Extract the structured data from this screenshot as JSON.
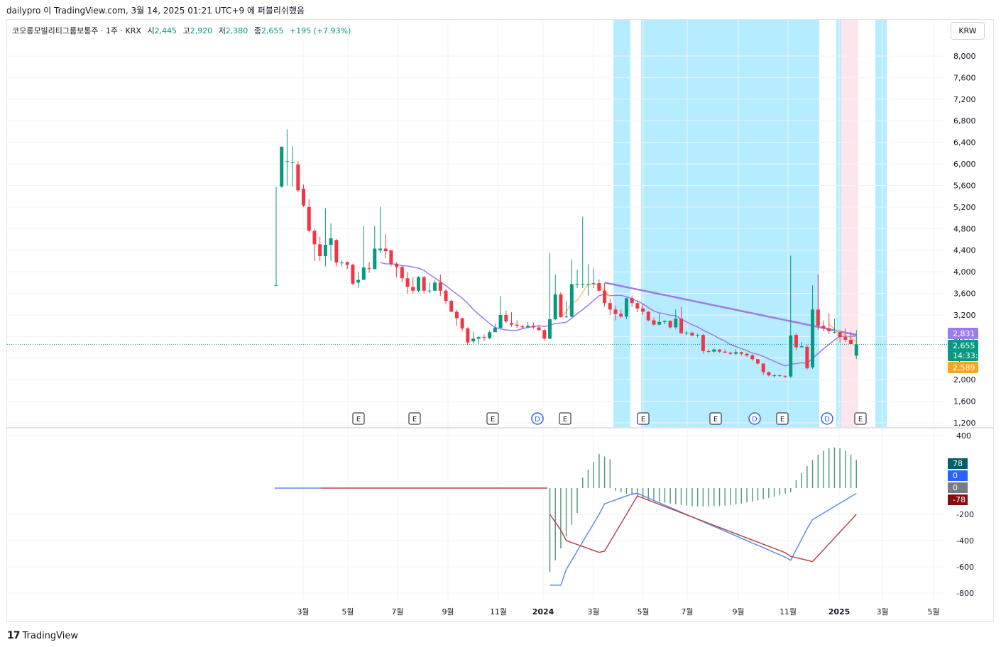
{
  "header": {
    "publish_line": "dailypro 이 TradingView.com, 3월 14, 2025 01:21 UTC+9 에 퍼블리쉬했음"
  },
  "legend": {
    "symbol": "코오롱모빌리티그룹보통주 · 1주 · KRX",
    "open_label": "시",
    "open": "2,445",
    "high_label": "고",
    "high": "2,920",
    "low_label": "저",
    "low": "2,380",
    "close_label": "종",
    "close": "2,655",
    "change": "+195 (+7.93%)"
  },
  "toolbar": {
    "currency": "KRW"
  },
  "footer": {
    "brand": "TradingView",
    "logo": "17"
  },
  "colors": {
    "up": "#089981",
    "down": "#f23645",
    "bg_zone_blue": "#b2ebff",
    "bg_zone_pink": "#fde5ea",
    "ma_purple": "#9c7bea",
    "ma_orange": "#f5c46b",
    "macd_line": "#5b8def",
    "signal_line": "#b2474a",
    "hist": "#5a9c80"
  },
  "chart_data": [
    {
      "type": "candlestick",
      "title": "코오롱모빌리티그룹보통주 · 1주 · KRX",
      "x_axis_labels": [
        "3월",
        "5월",
        "7월",
        "9월",
        "11월",
        "2024",
        "3월",
        "5월",
        "7월",
        "9월",
        "11월",
        "2025",
        "3월",
        "5월"
      ],
      "y_ticks": [
        "8,000",
        "7,600",
        "7,200",
        "6,800",
        "6,400",
        "6,000",
        "5,600",
        "5,200",
        "4,800",
        "4,400",
        "4,000",
        "3,600",
        "3,200",
        "2,800",
        "2,400",
        "2,000",
        "1,600",
        "1,200"
      ],
      "y_range": [
        1200,
        8000
      ],
      "price_labels": {
        "ma_long": "2,831",
        "last": "2,655",
        "countdown": "14:33:15",
        "ma_short": "2,589"
      },
      "event_markers": [
        "E",
        "E",
        "E",
        "D",
        "E",
        "E",
        "E",
        "D",
        "E",
        "D",
        "E"
      ],
      "candles": [
        [
          3750,
          3750,
          5580,
          3740
        ],
        [
          5580,
          6320,
          5560,
          6080
        ],
        [
          6050,
          6050,
          6640,
          5600
        ],
        [
          6030,
          6030,
          6330,
          5580
        ],
        [
          5990,
          5510,
          6050,
          5480
        ],
        [
          5540,
          5230,
          5620,
          5200
        ],
        [
          5200,
          4760,
          5350,
          4730
        ],
        [
          4760,
          4510,
          4800,
          4200
        ],
        [
          4510,
          4290,
          4650,
          4200
        ],
        [
          4290,
          4500,
          5180,
          4100
        ],
        [
          4500,
          4620,
          4900,
          4200
        ],
        [
          4590,
          4170,
          4610,
          4100
        ],
        [
          4170,
          4170,
          4210,
          4100
        ],
        [
          4180,
          4130,
          4190,
          4050
        ],
        [
          4130,
          3780,
          4150,
          3750
        ],
        [
          3800,
          3850,
          4000,
          3700
        ],
        [
          3850,
          4080,
          4850,
          3850
        ],
        [
          4070,
          4060,
          4180,
          3980
        ],
        [
          4050,
          4430,
          4850,
          4050
        ],
        [
          4400,
          4430,
          5200,
          4350
        ],
        [
          4430,
          4380,
          4700,
          4250
        ],
        [
          4400,
          4150,
          4400,
          4100
        ],
        [
          4150,
          4090,
          4180,
          3900
        ],
        [
          4090,
          3880,
          4120,
          3800
        ],
        [
          3880,
          3720,
          4000,
          3590
        ],
        [
          3720,
          3650,
          3900,
          3600
        ],
        [
          3650,
          3900,
          3920,
          3620
        ],
        [
          3900,
          3650,
          3920,
          3600
        ],
        [
          3650,
          3650,
          3800,
          3600
        ],
        [
          3650,
          3800,
          3850,
          3650
        ],
        [
          3800,
          3650,
          3950,
          3550
        ],
        [
          3650,
          3460,
          3680,
          3400
        ],
        [
          3460,
          3260,
          3480,
          3250
        ],
        [
          3260,
          3140,
          3300,
          3000
        ],
        [
          3140,
          2950,
          3150,
          2900
        ],
        [
          2950,
          2690,
          2970,
          2640
        ],
        [
          2710,
          2760,
          2890,
          2670
        ],
        [
          2760,
          2790,
          2810,
          2660
        ],
        [
          2790,
          2780,
          2840,
          2720
        ],
        [
          2770,
          2880,
          2910,
          2750
        ],
        [
          2880,
          2960,
          3040,
          2900
        ],
        [
          2960,
          3200,
          3550,
          2950
        ],
        [
          3200,
          3080,
          3280,
          3050
        ],
        [
          3050,
          3020,
          3250,
          2980
        ],
        [
          3020,
          3000,
          3100,
          2960
        ],
        [
          2990,
          2970,
          3020,
          2940
        ],
        [
          2970,
          3000,
          3070,
          2960
        ],
        [
          3000,
          2970,
          3060,
          2940
        ],
        [
          2970,
          2920,
          3000,
          2900
        ],
        [
          2920,
          2760,
          2940,
          2720
        ],
        [
          2760,
          3120,
          4350,
          2750
        ],
        [
          3120,
          3580,
          3950,
          3100
        ],
        [
          3580,
          3160,
          3620,
          3150
        ],
        [
          3160,
          3170,
          3460,
          3150
        ],
        [
          3170,
          3770,
          4230,
          3160
        ],
        [
          3770,
          3770,
          4040,
          3700
        ],
        [
          3770,
          3770,
          5020,
          3700
        ],
        [
          3770,
          3770,
          4140,
          3560
        ],
        [
          3780,
          3790,
          4060,
          3700
        ],
        [
          3790,
          3650,
          3860,
          3630
        ],
        [
          3650,
          3420,
          3790,
          3350
        ],
        [
          3420,
          3300,
          3500,
          3200
        ],
        [
          3300,
          3220,
          3370,
          3100
        ],
        [
          3220,
          3170,
          3300,
          3150
        ],
        [
          3170,
          3510,
          3520,
          3120
        ],
        [
          3510,
          3420,
          3560,
          3350
        ],
        [
          3420,
          3320,
          3460,
          3250
        ],
        [
          3320,
          3260,
          3400,
          3200
        ],
        [
          3260,
          3100,
          3270,
          3080
        ],
        [
          3100,
          3020,
          3150,
          3000
        ],
        [
          3020,
          3070,
          3230,
          3010
        ],
        [
          3070,
          3090,
          3100,
          3030
        ],
        [
          3090,
          2970,
          3100,
          2950
        ],
        [
          2970,
          3130,
          3300,
          2940
        ],
        [
          3130,
          2860,
          3350,
          2850
        ],
        [
          2860,
          2870,
          2910,
          2830
        ],
        [
          2870,
          2820,
          2890,
          2800
        ],
        [
          2820,
          2830,
          2850,
          2780
        ],
        [
          2830,
          2530,
          2850,
          2480
        ],
        [
          2530,
          2520,
          2560,
          2490
        ],
        [
          2520,
          2560,
          2580,
          2500
        ],
        [
          2560,
          2520,
          2560,
          2500
        ],
        [
          2520,
          2500,
          2560,
          2490
        ],
        [
          2500,
          2480,
          2520,
          2460
        ],
        [
          2480,
          2510,
          2560,
          2460
        ],
        [
          2510,
          2480,
          2520,
          2450
        ],
        [
          2480,
          2450,
          2500,
          2420
        ],
        [
          2450,
          2380,
          2470,
          2350
        ],
        [
          2380,
          2300,
          2380,
          2280
        ],
        [
          2300,
          2140,
          2300,
          2090
        ],
        [
          2140,
          2080,
          2150,
          2060
        ],
        [
          2080,
          2080,
          2110,
          2040
        ],
        [
          2080,
          2070,
          2100,
          2050
        ],
        [
          2070,
          2060,
          2080,
          2030
        ],
        [
          2060,
          2820,
          4300,
          2030
        ],
        [
          2830,
          2600,
          2860,
          2550
        ],
        [
          2600,
          2620,
          2700,
          2600
        ],
        [
          2610,
          2210,
          2650,
          2190
        ],
        [
          2230,
          3300,
          3750,
          2200
        ],
        [
          3300,
          3000,
          3950,
          2920
        ],
        [
          3000,
          2950,
          3100,
          2900
        ],
        [
          2950,
          2900,
          3230,
          2850
        ],
        [
          2880,
          2880,
          3130,
          2860
        ],
        [
          2880,
          2790,
          2890,
          2690
        ],
        [
          2790,
          2740,
          2950,
          2700
        ],
        [
          2740,
          2660,
          2890,
          2670
        ],
        [
          2445,
          2655,
          2920,
          2380
        ]
      ],
      "ma_long_series": [
        [
          4,
          3810
        ],
        [
          10,
          3720
        ],
        [
          16,
          3640
        ],
        [
          22,
          3520
        ],
        [
          28,
          3340
        ],
        [
          34,
          3140
        ],
        [
          40,
          3050
        ],
        [
          46,
          2990
        ],
        [
          52,
          2980
        ],
        [
          58,
          3050
        ],
        [
          64,
          3180
        ],
        [
          70,
          3250
        ],
        [
          76,
          3240
        ],
        [
          82,
          3190
        ],
        [
          88,
          3110
        ],
        [
          94,
          3030
        ],
        [
          100,
          2960
        ],
        [
          106,
          2880
        ],
        [
          112,
          2850
        ],
        [
          118,
          2830
        ],
        [
          124,
          2810
        ],
        [
          130,
          2770
        ],
        [
          136,
          2730
        ],
        [
          142,
          2690
        ],
        [
          148,
          2640
        ],
        [
          154,
          2590
        ],
        [
          160,
          2560
        ],
        [
          166,
          2550
        ],
        [
          172,
          2560
        ],
        [
          178,
          2590
        ],
        [
          184,
          2620
        ],
        [
          190,
          2660
        ],
        [
          196,
          2720
        ],
        [
          202,
          2750
        ],
        [
          208,
          2780
        ],
        [
          214,
          2800
        ],
        [
          220,
          2810
        ],
        [
          226,
          2831
        ]
      ],
      "ma_short_series": [
        [
          4,
          3810
        ],
        [
          10,
          3720
        ]
      ],
      "ma_orange_series": [
        [
          50,
          3000
        ],
        [
          56,
          3200
        ],
        [
          61,
          3300
        ]
      ],
      "macd_y_ticks": [
        "400",
        "-200",
        "-400",
        "-600",
        "-800"
      ],
      "macd_value_labels": [
        "78",
        "0",
        "0",
        "-78"
      ]
    }
  ]
}
